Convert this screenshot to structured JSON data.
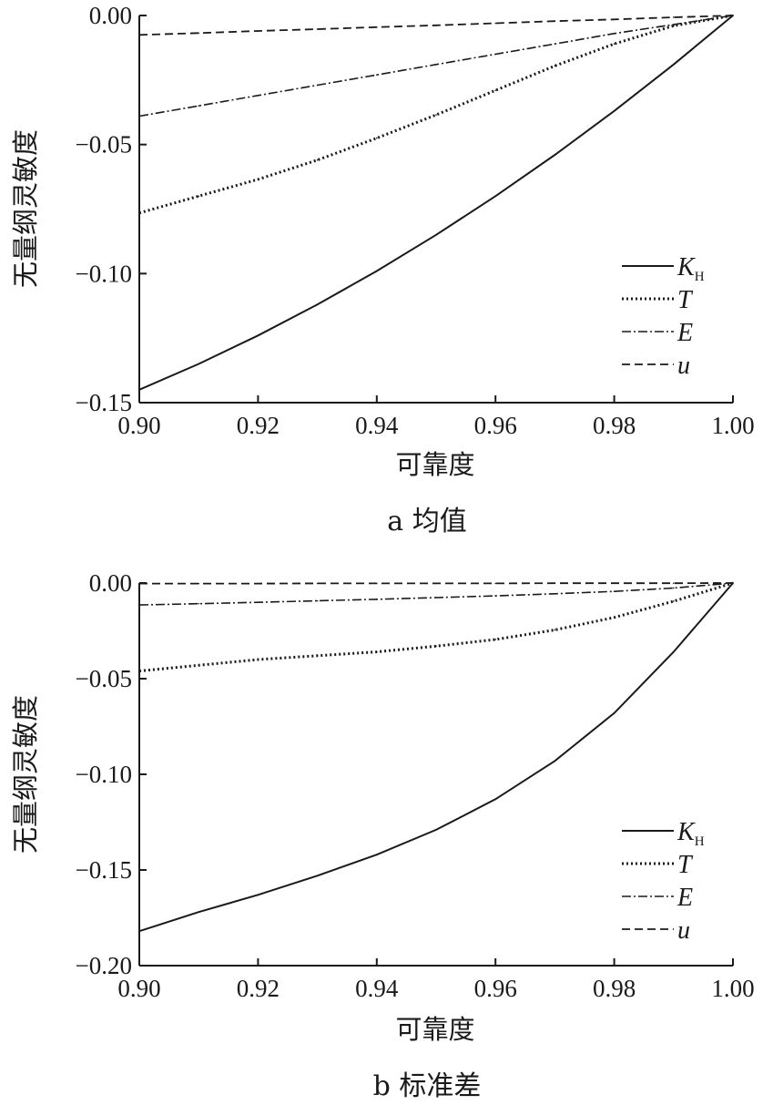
{
  "chart_data": [
    {
      "type": "line",
      "caption": "a 均值",
      "xlabel": "可靠度",
      "ylabel": "无量纲灵敏度",
      "xlim": [
        0.9,
        1.0
      ],
      "ylim": [
        -0.15,
        0.0
      ],
      "xticks": [
        "0.90",
        "0.92",
        "0.94",
        "0.96",
        "0.98",
        "1.00"
      ],
      "yticks": [
        "0.00",
        "-0.05",
        "-0.10",
        "-0.15"
      ],
      "legend_position": "lower-right",
      "x": [
        0.9,
        0.91,
        0.92,
        0.93,
        0.94,
        0.95,
        0.96,
        0.97,
        0.98,
        0.99,
        1.0
      ],
      "series": [
        {
          "name": "K",
          "sub": "H",
          "style": "solid",
          "values": [
            -0.145,
            -0.135,
            -0.124,
            -0.112,
            -0.099,
            -0.085,
            -0.07,
            -0.054,
            -0.037,
            -0.019,
            0.0
          ]
        },
        {
          "name": "T",
          "style": "dotted",
          "values": [
            -0.0765,
            -0.07,
            -0.0635,
            -0.056,
            -0.0475,
            -0.0385,
            -0.029,
            -0.0195,
            -0.011,
            -0.004,
            0.0
          ]
        },
        {
          "name": "E",
          "style": "dashdot",
          "values": [
            -0.039,
            -0.035,
            -0.031,
            -0.027,
            -0.023,
            -0.019,
            -0.015,
            -0.011,
            -0.007,
            -0.0035,
            0.0
          ]
        },
        {
          "name": "u",
          "style": "dashed",
          "values": [
            -0.0075,
            -0.0068,
            -0.006,
            -0.0053,
            -0.0045,
            -0.0038,
            -0.003,
            -0.0022,
            -0.0015,
            -0.0007,
            0.0
          ]
        }
      ]
    },
    {
      "type": "line",
      "caption": "b 标准差",
      "xlabel": "可靠度",
      "ylabel": "无量纲灵敏度",
      "xlim": [
        0.9,
        1.0
      ],
      "ylim": [
        -0.2,
        0.0
      ],
      "xticks": [
        "0.90",
        "0.92",
        "0.94",
        "0.96",
        "0.98",
        "1.00"
      ],
      "yticks": [
        "0.00",
        "-0.05",
        "-0.10",
        "-0.15",
        "-0.20"
      ],
      "legend_position": "lower-right",
      "x": [
        0.9,
        0.91,
        0.92,
        0.93,
        0.94,
        0.95,
        0.96,
        0.97,
        0.98,
        0.99,
        1.0
      ],
      "series": [
        {
          "name": "K",
          "sub": "H",
          "style": "solid",
          "values": [
            -0.182,
            -0.172,
            -0.163,
            -0.153,
            -0.142,
            -0.129,
            -0.113,
            -0.093,
            -0.068,
            -0.036,
            0.0
          ]
        },
        {
          "name": "T",
          "style": "dotted",
          "values": [
            -0.046,
            -0.043,
            -0.04,
            -0.038,
            -0.036,
            -0.033,
            -0.0295,
            -0.0245,
            -0.018,
            -0.0095,
            0.0
          ]
        },
        {
          "name": "E",
          "style": "dashdot",
          "values": [
            -0.0115,
            -0.0108,
            -0.0101,
            -0.0093,
            -0.0085,
            -0.0076,
            -0.0067,
            -0.0056,
            -0.0044,
            -0.0026,
            0.0
          ]
        },
        {
          "name": "u",
          "style": "dashed",
          "values": [
            -0.0003,
            -0.0003,
            -0.0003,
            -0.0002,
            -0.0002,
            -0.0002,
            -0.0002,
            -0.0001,
            -0.0001,
            -0.0001,
            0.0
          ]
        }
      ]
    }
  ]
}
